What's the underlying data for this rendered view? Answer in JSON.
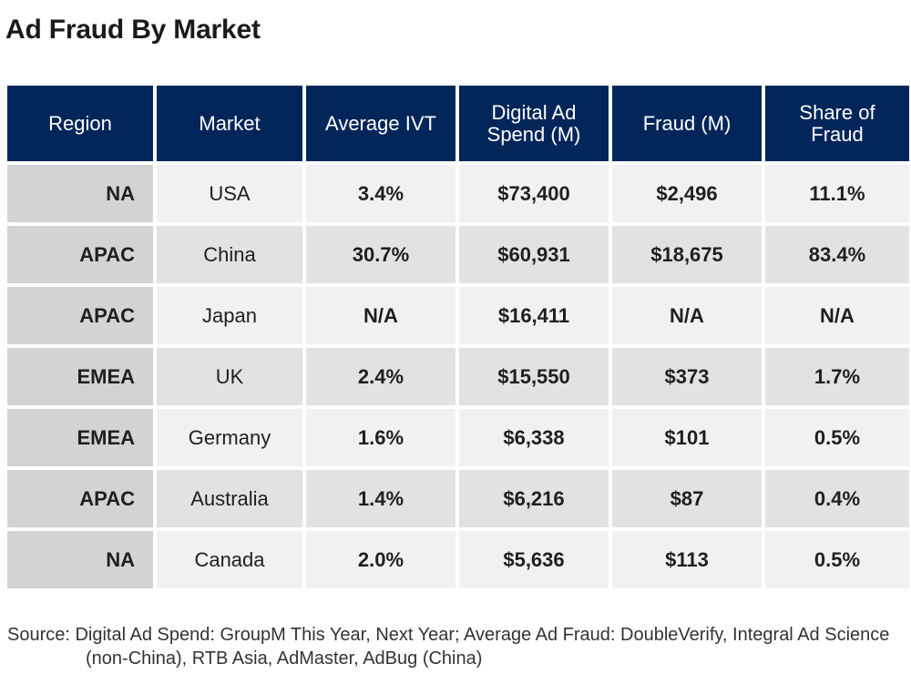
{
  "title": "Ad Fraud By Market",
  "headers": {
    "region": "Region",
    "market": "Market",
    "ivt": "Average IVT",
    "spend": "Digital Ad Spend (M)",
    "fraud": "Fraud (M)",
    "share": "Share of Fraud"
  },
  "rows": [
    {
      "region": "NA",
      "market": "USA",
      "ivt": "3.4%",
      "spend": "$73,400",
      "fraud": "$2,496",
      "share": "11.1%"
    },
    {
      "region": "APAC",
      "market": "China",
      "ivt": "30.7%",
      "spend": "$60,931",
      "fraud": "$18,675",
      "share": "83.4%"
    },
    {
      "region": "APAC",
      "market": "Japan",
      "ivt": "N/A",
      "spend": "$16,411",
      "fraud": "N/A",
      "share": "N/A"
    },
    {
      "region": "EMEA",
      "market": "UK",
      "ivt": "2.4%",
      "spend": "$15,550",
      "fraud": "$373",
      "share": "1.7%"
    },
    {
      "region": "EMEA",
      "market": "Germany",
      "ivt": "1.6%",
      "spend": "$6,338",
      "fraud": "$101",
      "share": "0.5%"
    },
    {
      "region": "APAC",
      "market": "Australia",
      "ivt": "1.4%",
      "spend": "$6,216",
      "fraud": "$87",
      "share": "0.4%"
    },
    {
      "region": "NA",
      "market": "Canada",
      "ivt": "2.0%",
      "spend": "$5,636",
      "fraud": "$113",
      "share": "0.5%"
    }
  ],
  "source": "Source: Digital Ad Spend: GroupM This Year, Next Year; Average Ad Fraud: DoubleVerify, Integral Ad Science (non-China), RTB Asia, AdMaster, AdBug (China)",
  "colors": {
    "header_bg": "#03265a",
    "region_bg": "#d1d3d4",
    "row_light": "#f1f1f2",
    "row_dark": "#e1e2e3"
  },
  "chart_data": {
    "type": "table",
    "title": "Ad Fraud By Market",
    "columns": [
      "Region",
      "Market",
      "Average IVT",
      "Digital Ad Spend (M)",
      "Fraud (M)",
      "Share of Fraud"
    ],
    "rows": [
      [
        "NA",
        "USA",
        "3.4%",
        "$73,400",
        "$2,496",
        "11.1%"
      ],
      [
        "APAC",
        "China",
        "30.7%",
        "$60,931",
        "$18,675",
        "83.4%"
      ],
      [
        "APAC",
        "Japan",
        "N/A",
        "$16,411",
        "N/A",
        "N/A"
      ],
      [
        "EMEA",
        "UK",
        "2.4%",
        "$15,550",
        "$373",
        "1.7%"
      ],
      [
        "EMEA",
        "Germany",
        "1.6%",
        "$6,338",
        "$101",
        "0.5%"
      ],
      [
        "APAC",
        "Australia",
        "1.4%",
        "$6,216",
        "$87",
        "0.4%"
      ],
      [
        "NA",
        "Canada",
        "2.0%",
        "$5,636",
        "$113",
        "0.5%"
      ]
    ]
  }
}
